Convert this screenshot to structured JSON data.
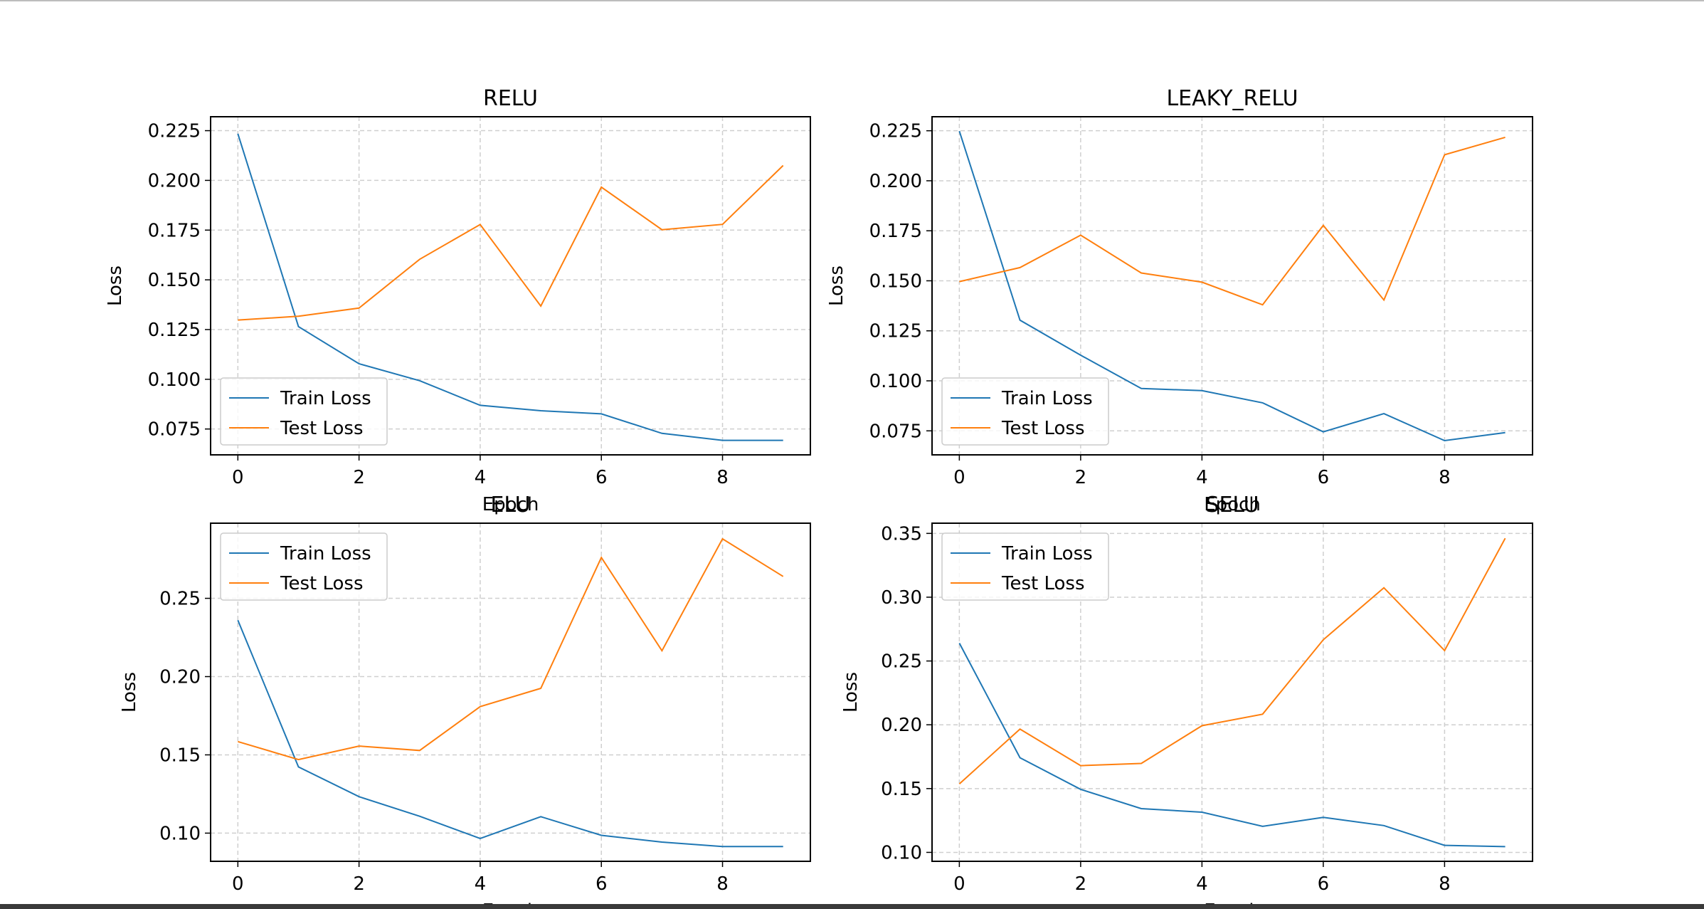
{
  "chart_data": [
    {
      "type": "line",
      "title": "RELU",
      "xlabel": "Epoch",
      "ylabel": "Loss",
      "x": [
        0,
        1,
        2,
        3,
        4,
        5,
        6,
        7,
        8,
        9
      ],
      "xlim": [
        -0.45,
        9.45
      ],
      "ylim": [
        0.062,
        0.232
      ],
      "xticks": [
        0,
        2,
        4,
        6,
        8
      ],
      "yticks": [
        0.075,
        0.1,
        0.125,
        0.15,
        0.175,
        0.2,
        0.225
      ],
      "ytick_labels": [
        "0.075",
        "0.100",
        "0.125",
        "0.150",
        "0.175",
        "0.200",
        "0.225"
      ],
      "grid": true,
      "legend_position": "lower-left",
      "series": [
        {
          "name": "Train Loss",
          "color": "#1f77b4",
          "values": [
            0.2235,
            0.1265,
            0.1078,
            0.0993,
            0.0869,
            0.0842,
            0.0826,
            0.0728,
            0.0693,
            0.0693
          ]
        },
        {
          "name": "Test Loss",
          "color": "#ff7f0e",
          "values": [
            0.1298,
            0.1317,
            0.1358,
            0.1603,
            0.1778,
            0.1368,
            0.1966,
            0.1752,
            0.1779,
            0.2075
          ]
        }
      ]
    },
    {
      "type": "line",
      "title": "LEAKY_RELU",
      "xlabel": "Epoch",
      "ylabel": "Loss",
      "x": [
        0,
        1,
        2,
        3,
        4,
        5,
        6,
        7,
        8,
        9
      ],
      "xlim": [
        -0.45,
        9.45
      ],
      "ylim": [
        0.063,
        0.232
      ],
      "xticks": [
        0,
        2,
        4,
        6,
        8
      ],
      "yticks": [
        0.075,
        0.1,
        0.125,
        0.15,
        0.175,
        0.2,
        0.225
      ],
      "ytick_labels": [
        "0.075",
        "0.100",
        "0.125",
        "0.150",
        "0.175",
        "0.200",
        "0.225"
      ],
      "grid": true,
      "legend_position": "lower-left",
      "series": [
        {
          "name": "Train Loss",
          "color": "#1f77b4",
          "values": [
            0.2248,
            0.1303,
            0.1128,
            0.0962,
            0.0951,
            0.089,
            0.0745,
            0.0836,
            0.0701,
            0.0741
          ]
        },
        {
          "name": "Test Loss",
          "color": "#ff7f0e",
          "values": [
            0.1496,
            0.1566,
            0.1728,
            0.1539,
            0.1493,
            0.138,
            0.1777,
            0.1404,
            0.213,
            0.2217
          ]
        }
      ]
    },
    {
      "type": "line",
      "title": "ELU",
      "xlabel": "Epoch",
      "ylabel": "Loss",
      "x": [
        0,
        1,
        2,
        3,
        4,
        5,
        6,
        7,
        8,
        9
      ],
      "xlim": [
        -0.45,
        9.45
      ],
      "ylim": [
        0.082,
        0.298
      ],
      "xticks": [
        0,
        2,
        4,
        6,
        8
      ],
      "yticks": [
        0.1,
        0.15,
        0.2,
        0.25
      ],
      "ytick_labels": [
        "0.10",
        "0.15",
        "0.20",
        "0.25"
      ],
      "grid": true,
      "legend_position": "upper-left",
      "series": [
        {
          "name": "Train Loss",
          "color": "#1f77b4",
          "values": [
            0.236,
            0.1423,
            0.1233,
            0.1108,
            0.0966,
            0.1105,
            0.0986,
            0.0943,
            0.0914,
            0.0914
          ]
        },
        {
          "name": "Test Loss",
          "color": "#ff7f0e",
          "values": [
            0.1585,
            0.147,
            0.1556,
            0.1528,
            0.1808,
            0.1925,
            0.2761,
            0.2165,
            0.288,
            0.264
          ]
        }
      ]
    },
    {
      "type": "line",
      "title": "SELU",
      "xlabel": "Epoch",
      "ylabel": "Loss",
      "x": [
        0,
        1,
        2,
        3,
        4,
        5,
        6,
        7,
        8,
        9
      ],
      "xlim": [
        -0.45,
        9.45
      ],
      "ylim": [
        0.093,
        0.358
      ],
      "xticks": [
        0,
        2,
        4,
        6,
        8
      ],
      "yticks": [
        0.1,
        0.15,
        0.2,
        0.25,
        0.3,
        0.35
      ],
      "ytick_labels": [
        "0.10",
        "0.15",
        "0.20",
        "0.25",
        "0.30",
        "0.35"
      ],
      "grid": true,
      "legend_position": "upper-left",
      "series": [
        {
          "name": "Train Loss",
          "color": "#1f77b4",
          "values": [
            0.264,
            0.1742,
            0.1494,
            0.1343,
            0.1315,
            0.1204,
            0.1275,
            0.121,
            0.1055,
            0.1045
          ]
        },
        {
          "name": "Test Loss",
          "color": "#ff7f0e",
          "values": [
            0.1537,
            0.1966,
            0.168,
            0.1697,
            0.1993,
            0.2083,
            0.2666,
            0.3074,
            0.2582,
            0.3462
          ]
        }
      ]
    }
  ]
}
